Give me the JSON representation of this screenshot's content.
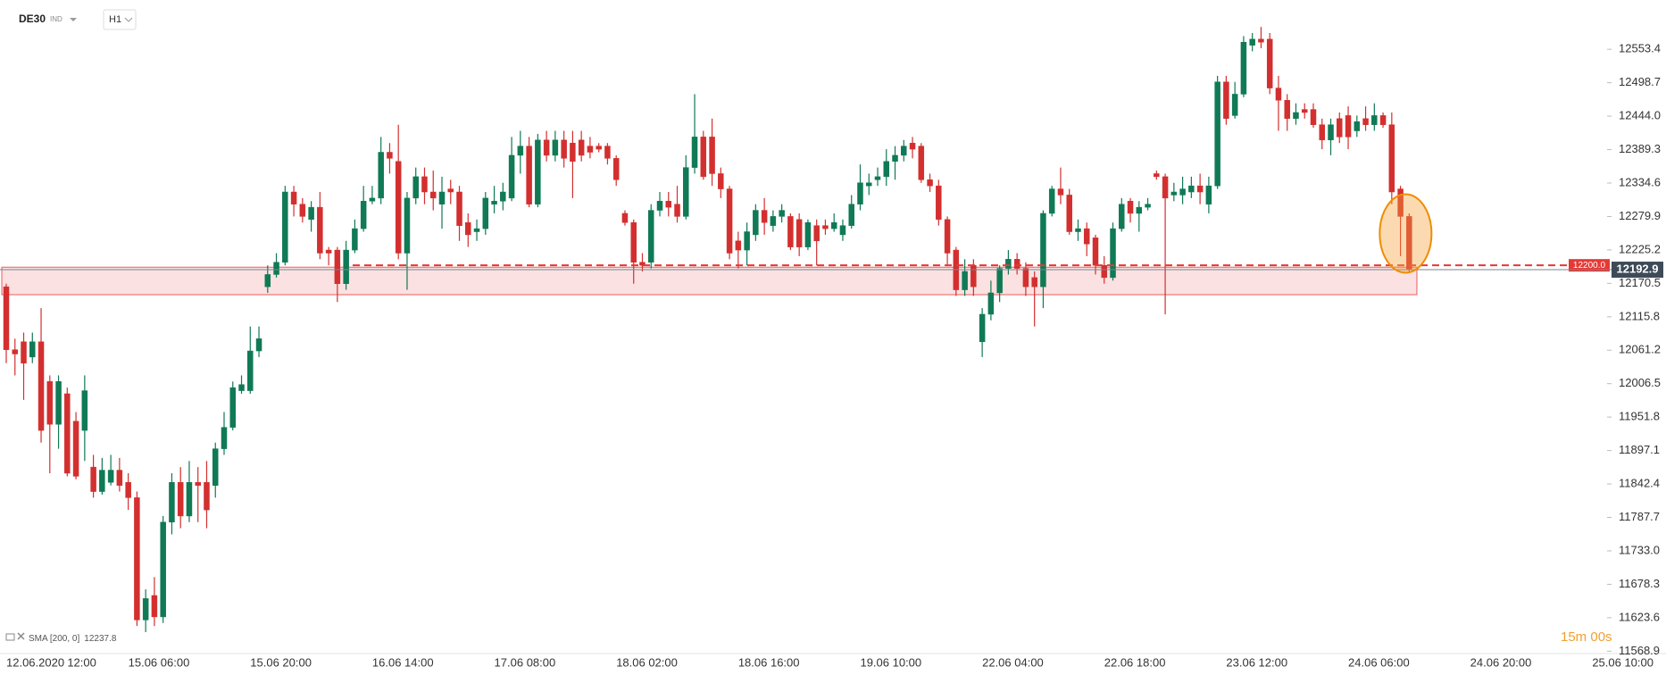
{
  "header": {
    "symbol": "DE30",
    "market": "IND",
    "interval": "H1"
  },
  "chart_data": {
    "type": "candlestick",
    "categories": [
      "12.06.2020",
      null,
      null,
      null,
      null,
      null,
      null,
      "12:00",
      null,
      null,
      null,
      null,
      null,
      null,
      "15.06 06:00",
      null,
      null,
      null,
      null,
      null,
      null,
      null,
      null,
      null,
      null,
      null,
      null,
      null,
      "15.06 20:00",
      null,
      null,
      null,
      null,
      null,
      null,
      null,
      null,
      null,
      null,
      null,
      null,
      null,
      "16.06 14:00",
      null,
      null,
      null,
      null,
      null,
      null,
      null,
      null,
      null,
      null,
      null,
      null,
      null,
      "17.06 08:00",
      null,
      null,
      null,
      null,
      null,
      null,
      null,
      null,
      null,
      null,
      null,
      null,
      null,
      "18.06 02:00",
      null,
      null,
      null,
      null,
      null,
      null,
      null,
      null,
      null,
      null,
      null,
      null,
      null,
      "18.06 16:00",
      null,
      null,
      null,
      null,
      null,
      null,
      null,
      null,
      null,
      null,
      null,
      null,
      null,
      "19.06 10:00",
      null,
      null,
      null,
      null,
      null,
      null,
      null,
      null,
      null,
      null,
      null,
      null,
      null,
      "22.06 04:00",
      null,
      null,
      null,
      null,
      null,
      null,
      null,
      null,
      null,
      null,
      null,
      null,
      null,
      "22.06 18:00",
      null,
      null,
      null,
      null,
      null,
      null,
      null,
      null,
      null,
      null,
      null,
      null,
      null,
      "23.06 12:00",
      null,
      null,
      null,
      null,
      null,
      null,
      null,
      null,
      null,
      null,
      null,
      null,
      null,
      "24.06 06:00",
      null,
      null,
      null,
      null,
      null,
      null,
      null,
      null,
      null,
      null,
      null,
      null,
      null,
      "24.06 20:00",
      null,
      null,
      null,
      null,
      null,
      null,
      null,
      null,
      null,
      null,
      null,
      null,
      null,
      "25.06 10:00"
    ],
    "open": [
      12165,
      12062,
      12075,
      12050,
      12075,
      12010,
      11940,
      11990,
      11945,
      11930,
      11870,
      11830,
      11845,
      11865,
      11845,
      11820,
      11620,
      11660,
      11625,
      11780,
      11845,
      11790,
      11845,
      11845,
      11840,
      11900,
      11935,
      11995,
      11995,
      12060,
      12165,
      12185,
      12205,
      12320,
      12300,
      12275,
      12295,
      12225,
      12225,
      12170,
      12225,
      12260,
      12305,
      12310,
      12385,
      12370,
      12220,
      12310,
      12345,
      12320,
      12300,
      12325,
      12320,
      12270,
      12255,
      12260,
      12300,
      12305,
      12310,
      12380,
      12395,
      12300,
      12405,
      12380,
      12405,
      12400,
      12405,
      12395,
      12395,
      12395,
      12375,
      12285,
      12270,
      12205,
      12205,
      12290,
      12305,
      12300,
      12280,
      12360,
      12410,
      12410,
      12350,
      12325,
      12240,
      12225,
      12250,
      12290,
      12265,
      12280,
      12280,
      12275,
      12230,
      12265,
      12265,
      12260,
      12250,
      12265,
      12300,
      12330,
      12340,
      12345,
      12370,
      12380,
      12400,
      12395,
      12340,
      12330,
      12275,
      12225,
      12160,
      12200,
      12075,
      12120,
      12155,
      12195,
      12210,
      12195,
      12180,
      12165,
      12285,
      12325,
      12315,
      12255,
      12260,
      12245,
      12200,
      12180,
      12260,
      12305,
      12285,
      12295,
      12350,
      12345,
      12315,
      12315,
      12320,
      12330,
      12300,
      12330,
      12500,
      12445,
      12480,
      12560,
      12570,
      12570,
      12490,
      12470,
      12440,
      12455,
      12455,
      12430,
      12405,
      12440,
      12445,
      12420,
      12440,
      12430,
      12445,
      12430,
      12325,
      12280,
      null,
      null,
      null,
      null,
      null,
      null,
      null,
      null,
      null,
      null,
      null,
      null,
      null,
      null,
      null,
      null,
      null,
      null,
      null,
      null,
      null
    ],
    "high": [
      12170,
      12080,
      12090,
      12090,
      12130,
      12020,
      12020,
      12000,
      11960,
      12020,
      11890,
      11885,
      11890,
      11885,
      11860,
      11830,
      11670,
      11690,
      11790,
      11860,
      11870,
      11880,
      11870,
      11880,
      11910,
      11960,
      12010,
      12020,
      12100,
      12100,
      12200,
      12220,
      12330,
      12330,
      12310,
      12305,
      12320,
      12230,
      12230,
      12240,
      12275,
      12330,
      12330,
      12410,
      12400,
      12430,
      12320,
      12360,
      12360,
      12355,
      12345,
      12340,
      12330,
      12285,
      12275,
      12320,
      12330,
      12335,
      12410,
      12420,
      12410,
      12415,
      12420,
      12420,
      12420,
      12420,
      12420,
      12410,
      12400,
      12400,
      12380,
      12290,
      12275,
      12220,
      12300,
      12320,
      12320,
      12330,
      12380,
      12480,
      12420,
      12440,
      12360,
      12330,
      12255,
      12270,
      12300,
      12310,
      12290,
      12300,
      12285,
      12285,
      12275,
      12275,
      12275,
      12285,
      12275,
      12315,
      12365,
      12350,
      12360,
      12390,
      12395,
      12405,
      12410,
      12400,
      12350,
      12340,
      12280,
      12230,
      12210,
      12210,
      12130,
      12175,
      12200,
      12225,
      12220,
      12205,
      12190,
      12290,
      12330,
      12360,
      12325,
      12275,
      12270,
      12250,
      12215,
      12270,
      12310,
      12310,
      12305,
      12310,
      12355,
      12350,
      12335,
      12345,
      12345,
      12350,
      12345,
      12510,
      12510,
      12500,
      12575,
      12580,
      12590,
      12580,
      12510,
      12480,
      12465,
      12465,
      12465,
      12440,
      12440,
      12450,
      12460,
      12445,
      12460,
      12465,
      12450,
      12450,
      12330,
      12285,
      null,
      null,
      null,
      null,
      null,
      null,
      null,
      null,
      null,
      null,
      null,
      null,
      null,
      null,
      null,
      null,
      null,
      null,
      null,
      null,
      null
    ],
    "low": [
      12040,
      12020,
      11980,
      12040,
      11910,
      11860,
      11900,
      11855,
      11850,
      11880,
      11820,
      11825,
      11840,
      11830,
      11800,
      11610,
      11600,
      11610,
      11615,
      11760,
      11770,
      11780,
      11780,
      11770,
      11820,
      11890,
      11930,
      11990,
      11990,
      12050,
      12155,
      12180,
      12200,
      12280,
      12270,
      12255,
      12210,
      12200,
      12140,
      12160,
      12220,
      12255,
      12300,
      12300,
      12350,
      12210,
      12160,
      12300,
      12300,
      12290,
      12260,
      12300,
      12240,
      12230,
      12240,
      12250,
      12285,
      12290,
      12305,
      12350,
      12295,
      12295,
      12370,
      12370,
      12360,
      12310,
      12370,
      12375,
      12385,
      12365,
      12330,
      12265,
      12170,
      12190,
      12195,
      12280,
      12280,
      12270,
      12275,
      12350,
      12340,
      12330,
      12310,
      12210,
      12195,
      12200,
      12240,
      12250,
      12255,
      12270,
      12225,
      12215,
      12225,
      12200,
      12250,
      12255,
      12240,
      12260,
      12290,
      12315,
      12330,
      12330,
      12340,
      12370,
      12375,
      12335,
      12320,
      12265,
      12200,
      12150,
      12150,
      12150,
      12050,
      12110,
      12140,
      12185,
      12185,
      12150,
      12100,
      12130,
      12280,
      12300,
      12250,
      12240,
      12215,
      12185,
      12170,
      12175,
      12255,
      12270,
      12255,
      12290,
      12340,
      12120,
      12305,
      12300,
      12310,
      12300,
      12285,
      12325,
      12430,
      12440,
      12475,
      12550,
      12555,
      12480,
      12420,
      12420,
      12430,
      12440,
      12425,
      12390,
      12380,
      12400,
      12390,
      12410,
      12420,
      12420,
      12425,
      12300,
      12215,
      12190,
      null,
      null,
      null,
      null,
      null,
      null,
      null,
      null,
      null,
      null,
      null,
      null,
      null,
      null,
      null,
      null,
      null,
      null,
      null,
      null,
      null
    ],
    "close": [
      12062,
      12055,
      12040,
      12075,
      11930,
      11940,
      12010,
      11860,
      11855,
      11995,
      11830,
      11865,
      11865,
      11840,
      11820,
      11620,
      11655,
      11625,
      11780,
      11845,
      11790,
      11845,
      11840,
      11800,
      11900,
      11935,
      12000,
      12005,
      12060,
      12080,
      12185,
      12205,
      12320,
      12300,
      12280,
      12295,
      12220,
      12220,
      12170,
      12225,
      12260,
      12305,
      12310,
      12385,
      12375,
      12220,
      12310,
      12345,
      12320,
      12310,
      12320,
      12320,
      12265,
      12250,
      12260,
      12310,
      12305,
      12320,
      12380,
      12395,
      12300,
      12405,
      12380,
      12405,
      12375,
      12370,
      12380,
      12385,
      12390,
      12375,
      12340,
      12270,
      12205,
      12200,
      12290,
      12305,
      12295,
      12280,
      12360,
      12410,
      12345,
      12350,
      12325,
      12220,
      12225,
      12255,
      12290,
      12270,
      12280,
      12290,
      12230,
      12230,
      12270,
      12240,
      12260,
      12270,
      12265,
      12300,
      12335,
      12335,
      12345,
      12370,
      12380,
      12395,
      12390,
      12340,
      12330,
      12275,
      12220,
      12160,
      12190,
      12165,
      12120,
      12155,
      12195,
      12210,
      12195,
      12165,
      12165,
      12285,
      12325,
      12315,
      12255,
      12260,
      12235,
      12200,
      12180,
      12260,
      12300,
      12285,
      12295,
      12300,
      12345,
      12310,
      12320,
      12325,
      12330,
      12320,
      12330,
      12500,
      12440,
      12480,
      12565,
      12570,
      12565,
      12490,
      12470,
      12440,
      12450,
      12450,
      12430,
      12405,
      12430,
      12410,
      12410,
      12435,
      12430,
      12445,
      12430,
      12320,
      12280,
      12192.9,
      null,
      null,
      null,
      null,
      null,
      null,
      null,
      null,
      null,
      null,
      null,
      null,
      null,
      null,
      null,
      null,
      null,
      null,
      null,
      null,
      null
    ],
    "up_color": "#0f7a55",
    "down_color": "#d32f2f",
    "ylim": [
      11565,
      12634
    ],
    "yticks": [
      12553.4,
      12498.7,
      {
        "value": 12444,
        "label": "12444.0"
      },
      12389.3,
      12334.6,
      12279.9,
      12225.2,
      12170.5,
      12115.8,
      12061.2,
      12006.5,
      11951.8,
      11897.1,
      11842.4,
      11787.7,
      {
        "value": 11733,
        "label": "11733.0"
      },
      11678.3,
      11623.6,
      11568.9
    ],
    "zone": [
      12152,
      12197
    ],
    "zone_color": "#e53935",
    "alert_level": {
      "value": 12200,
      "label": "12200.0"
    },
    "last_price": 12192.9,
    "sma": {
      "label": "SMA [200, 0]",
      "value": 12237.8
    },
    "countdown": "15m 00s"
  }
}
